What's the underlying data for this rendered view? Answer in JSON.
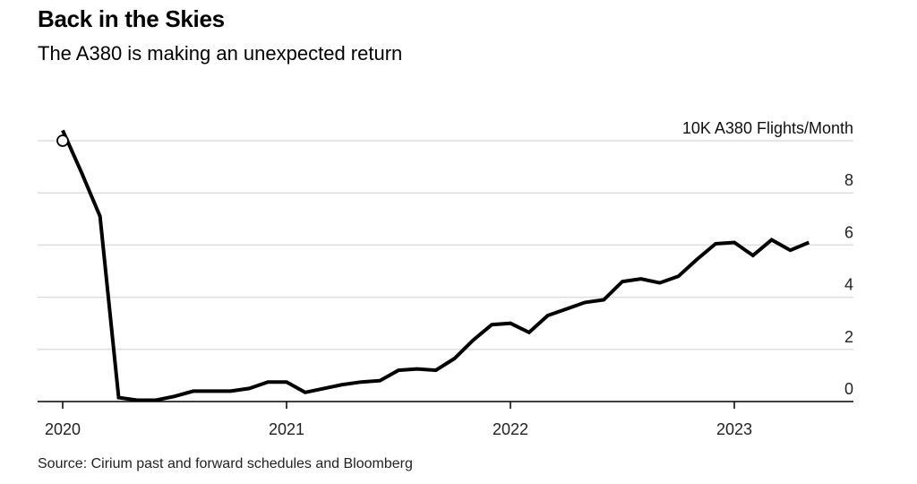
{
  "title": "Back in the Skies",
  "subtitle": "The A380 is making an unexpected return",
  "source": "Source: Cirium past and forward schedules and Bloomberg",
  "colors": {
    "line": "#000000",
    "grid": "#dddddd",
    "axis": "#000000",
    "marker_fill": "#ffffff"
  },
  "chart_data": {
    "type": "line",
    "title": "Back in the Skies",
    "subtitle": "The A380 is making an unexpected return",
    "xlabel": "",
    "ylabel": "10K A380 Flights/Month",
    "unit_label": "10K A380 Flights/Month",
    "ylim": [
      0,
      10
    ],
    "yticks": [
      0,
      2,
      4,
      6,
      8,
      10
    ],
    "ytick_labels": [
      "0",
      "2",
      "4",
      "6",
      "8",
      "10K A380 Flights/Month"
    ],
    "xlim": [
      "2020-01",
      "2023-12"
    ],
    "xticks": [
      "2020",
      "2021",
      "2022",
      "2023"
    ],
    "grid": true,
    "legend": "none",
    "y_axis_side": "right",
    "start_marker": "hollow-circle",
    "series": [
      {
        "name": "A380 flights per month (10K)",
        "x": [
          "2020-01",
          "2020-02",
          "2020-03",
          "2020-04",
          "2020-05",
          "2020-06",
          "2020-07",
          "2020-08",
          "2020-09",
          "2020-10",
          "2020-11",
          "2020-12",
          "2021-01",
          "2021-02",
          "2021-03",
          "2021-04",
          "2021-05",
          "2021-06",
          "2021-07",
          "2021-08",
          "2021-09",
          "2021-10",
          "2021-11",
          "2021-12",
          "2022-01",
          "2022-02",
          "2022-03",
          "2022-04",
          "2022-05",
          "2022-06",
          "2022-07",
          "2022-08",
          "2022-09",
          "2022-10",
          "2022-11",
          "2022-12",
          "2023-01",
          "2023-02",
          "2023-03",
          "2023-04",
          "2023-05"
        ],
        "values": [
          10.4,
          8.8,
          7.1,
          0.15,
          0.05,
          0.05,
          0.2,
          0.4,
          0.4,
          0.4,
          0.5,
          0.75,
          0.75,
          0.35,
          0.5,
          0.65,
          0.75,
          0.8,
          1.2,
          1.25,
          1.2,
          1.65,
          2.35,
          2.95,
          3.0,
          2.65,
          3.3,
          3.55,
          3.8,
          3.9,
          4.6,
          4.7,
          4.55,
          4.8,
          5.45,
          6.05,
          6.1,
          5.6,
          6.2,
          5.8,
          6.1
        ]
      }
    ]
  }
}
